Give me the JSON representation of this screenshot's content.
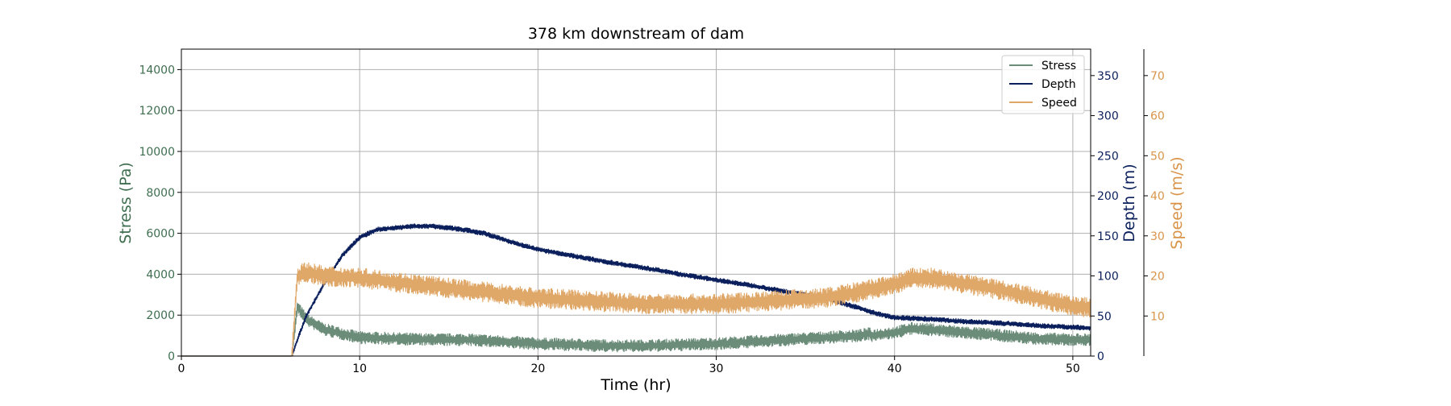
{
  "chart_data": {
    "type": "line",
    "title": "378 km downstream of dam",
    "xlabel": "Time (hr)",
    "xlim": [
      0,
      51
    ],
    "x_ticks": [
      0,
      10,
      20,
      30,
      40,
      50
    ],
    "grid": true,
    "legend_position": "top-right",
    "axes": {
      "stress": {
        "label": "Stress (Pa)",
        "ylim": [
          0,
          15000
        ],
        "ticks": [
          0,
          2000,
          4000,
          6000,
          8000,
          10000,
          12000,
          14000
        ],
        "color": "#3e6e4f",
        "side": "left"
      },
      "depth": {
        "label": "Depth (m)",
        "ylim": [
          0,
          383
        ],
        "ticks": [
          0,
          50,
          100,
          150,
          200,
          250,
          300,
          350
        ],
        "color": "#0a1f5c",
        "side": "right"
      },
      "speed": {
        "label": "Speed (m/s)",
        "ylim": [
          0,
          76.6
        ],
        "ticks": [
          10,
          20,
          30,
          40,
          50,
          60,
          70
        ],
        "color": "#d9944a",
        "side": "right-offset"
      }
    },
    "series": [
      {
        "name": "Stress",
        "axis": "stress",
        "color": "#6b8c78",
        "noise": 600,
        "points": [
          [
            0,
            0
          ],
          [
            6.2,
            0
          ],
          [
            6.5,
            2400
          ],
          [
            7,
            1800
          ],
          [
            8,
            1300
          ],
          [
            10,
            900
          ],
          [
            12,
            850
          ],
          [
            14,
            800
          ],
          [
            16,
            800
          ],
          [
            18,
            700
          ],
          [
            20,
            600
          ],
          [
            22,
            550
          ],
          [
            24,
            500
          ],
          [
            26,
            500
          ],
          [
            28,
            550
          ],
          [
            30,
            600
          ],
          [
            32,
            700
          ],
          [
            34,
            800
          ],
          [
            36,
            900
          ],
          [
            38,
            1000
          ],
          [
            38.6,
            1100
          ],
          [
            38.7,
            1000
          ],
          [
            40,
            1150
          ],
          [
            41,
            1350
          ],
          [
            42,
            1300
          ],
          [
            44,
            1150
          ],
          [
            46,
            1000
          ],
          [
            48,
            850
          ],
          [
            50,
            800
          ],
          [
            51,
            800
          ]
        ]
      },
      {
        "name": "Depth",
        "axis": "depth",
        "color": "#0a1f5c",
        "noise": 6,
        "points": [
          [
            0,
            0
          ],
          [
            6.2,
            0
          ],
          [
            6.5,
            20
          ],
          [
            7,
            50
          ],
          [
            8,
            90
          ],
          [
            9,
            125
          ],
          [
            10,
            148
          ],
          [
            11,
            158
          ],
          [
            12,
            160
          ],
          [
            13,
            162
          ],
          [
            14,
            162
          ],
          [
            15,
            160
          ],
          [
            16,
            157
          ],
          [
            17,
            153
          ],
          [
            18,
            146
          ],
          [
            19,
            139
          ],
          [
            20,
            133
          ],
          [
            22,
            125
          ],
          [
            24,
            117
          ],
          [
            26,
            110
          ],
          [
            28,
            102
          ],
          [
            30,
            95
          ],
          [
            32,
            88
          ],
          [
            34,
            80
          ],
          [
            36,
            73
          ],
          [
            38,
            60
          ],
          [
            39,
            53
          ],
          [
            40,
            48
          ],
          [
            42,
            46
          ],
          [
            44,
            43
          ],
          [
            46,
            41
          ],
          [
            48,
            38
          ],
          [
            50,
            36
          ],
          [
            51,
            35
          ]
        ]
      },
      {
        "name": "Speed",
        "axis": "speed",
        "color": "#e0a868",
        "noise": 5,
        "points": [
          [
            0,
            0
          ],
          [
            6.2,
            0
          ],
          [
            6.5,
            20
          ],
          [
            7,
            21
          ],
          [
            8,
            20
          ],
          [
            10,
            19.5
          ],
          [
            12,
            18.5
          ],
          [
            14,
            17.5
          ],
          [
            16,
            16.5
          ],
          [
            18,
            15.5
          ],
          [
            20,
            14.5
          ],
          [
            22,
            14
          ],
          [
            24,
            13.5
          ],
          [
            26,
            13
          ],
          [
            28,
            13
          ],
          [
            30,
            13
          ],
          [
            32,
            13.5
          ],
          [
            34,
            14
          ],
          [
            36,
            14.5
          ],
          [
            38,
            16
          ],
          [
            39,
            17
          ],
          [
            40,
            18
          ],
          [
            41,
            19.5
          ],
          [
            42,
            19.5
          ],
          [
            44,
            18
          ],
          [
            46,
            16.5
          ],
          [
            48,
            14.5
          ],
          [
            50,
            12.5
          ],
          [
            51,
            12
          ]
        ]
      }
    ]
  }
}
